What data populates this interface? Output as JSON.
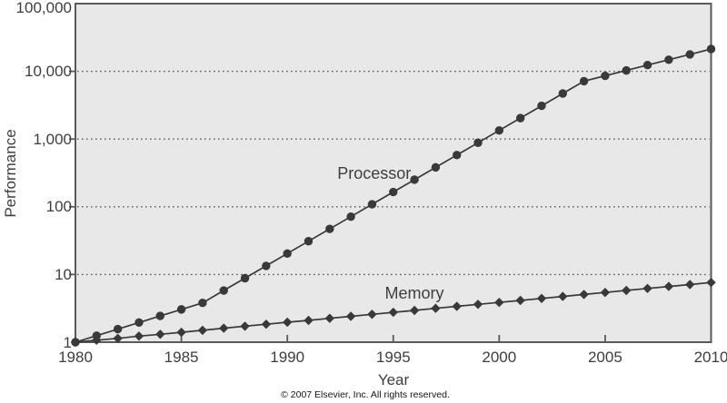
{
  "figure": {
    "footer": "© 2007 Elsevier, Inc. All rights reserved."
  },
  "chart_data": {
    "type": "line",
    "title": "",
    "xlabel": "Year",
    "ylabel": "Performance",
    "y_scale": "log",
    "xlim": [
      1980,
      2010
    ],
    "ylim": [
      1,
      100000
    ],
    "grid": "horizontal dotted lines at powers of 10",
    "legend_position": "inline labels on plot",
    "plot_background": "#e8e8e9",
    "axis_color": "#58595c",
    "series_color": "#39393b",
    "text_color": "#3e3e40",
    "x_ticks": [
      1980,
      1985,
      1990,
      1995,
      2000,
      2005,
      2010
    ],
    "x_tick_labels": [
      "1980",
      "1985",
      "1990",
      "1995",
      "2000",
      "2005",
      "2010"
    ],
    "y_ticks": [
      1,
      10,
      100,
      1000,
      10000,
      100000
    ],
    "y_tick_labels": [
      "1",
      "10",
      "100",
      "1,000",
      "10,000",
      "100,000"
    ],
    "years": [
      1980,
      1981,
      1982,
      1983,
      1984,
      1985,
      1986,
      1987,
      1988,
      1989,
      1990,
      1991,
      1992,
      1993,
      1994,
      1995,
      1996,
      1997,
      1998,
      1999,
      2000,
      2001,
      2002,
      2003,
      2004,
      2005,
      2006,
      2007,
      2008,
      2009,
      2010
    ],
    "series": [
      {
        "name": "Processor",
        "marker": "circle",
        "label_at": {
          "year": 1994.1,
          "value": 260
        },
        "values": [
          1.0,
          1.25,
          1.56,
          1.95,
          2.44,
          3.05,
          3.81,
          5.8,
          8.81,
          13.4,
          20.4,
          31.0,
          47.1,
          71.5,
          108.7,
          165.3,
          251.2,
          381.9,
          580.4,
          882.2,
          1341,
          2038,
          3098,
          4709,
          7158,
          8589,
          10307,
          12369,
          14842,
          17811,
          21373
        ]
      },
      {
        "name": "Memory",
        "marker": "diamond",
        "label_at": {
          "year": 1996.0,
          "value": 4.4
        },
        "values": [
          1.0,
          1.07,
          1.14,
          1.23,
          1.31,
          1.4,
          1.5,
          1.61,
          1.72,
          1.84,
          1.97,
          2.1,
          2.25,
          2.41,
          2.58,
          2.76,
          2.95,
          3.16,
          3.38,
          3.62,
          3.87,
          4.14,
          4.43,
          4.74,
          5.07,
          5.43,
          5.81,
          6.21,
          6.65,
          7.11,
          7.61
        ]
      }
    ],
    "footer": "© 2007 Elsevier, Inc. All rights reserved."
  }
}
